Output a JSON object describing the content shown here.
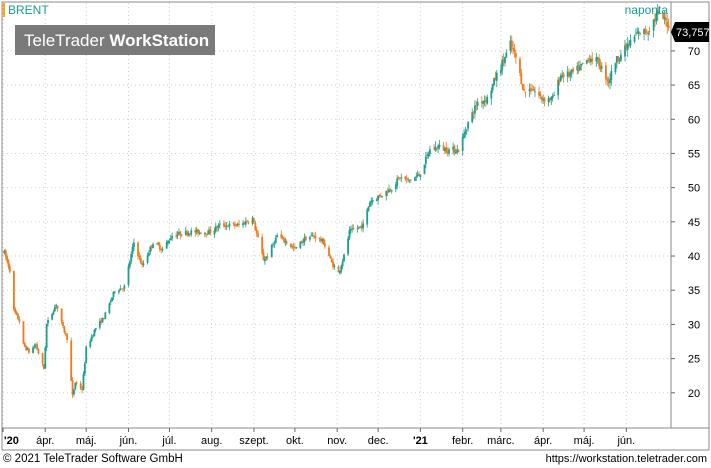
{
  "header": {
    "symbol": "BRENT",
    "interval": "naponta",
    "watermark_light": "TeleTrader",
    "watermark_bold": "WorkStation",
    "last_price": "73,757"
  },
  "footer": {
    "copyright": "© 2021 TeleTrader Software GmbH",
    "url": "https://workstation.teletrader.com"
  },
  "colors": {
    "up": "#1a9e8e",
    "down": "#f07a1a",
    "accent": "#f5a623",
    "symbol_text": "#1a9e8e",
    "grid": "#cfcfcf",
    "price_badge_bg": "#000000",
    "watermark_bg": "#7a7a7a"
  },
  "chart_data": {
    "type": "candlestick",
    "ylim": [
      15,
      77
    ],
    "yticks": [
      20,
      25,
      30,
      35,
      40,
      45,
      50,
      55,
      60,
      65,
      70
    ],
    "ytick_labels": [
      "20",
      "25",
      "30",
      "35",
      "40",
      "45",
      "50",
      "55",
      "60",
      "65",
      "70"
    ],
    "xlim": [
      "2020-03-01",
      "2021-07-03"
    ],
    "xticks": [
      {
        "date": "2020-03-01",
        "label": "'20"
      },
      {
        "date": "2020-04-01",
        "label": "ápr."
      },
      {
        "date": "2020-05-01",
        "label": "máj."
      },
      {
        "date": "2020-06-01",
        "label": "jún."
      },
      {
        "date": "2020-07-01",
        "label": "júl."
      },
      {
        "date": "2020-08-01",
        "label": "aug."
      },
      {
        "date": "2020-09-01",
        "label": "szept."
      },
      {
        "date": "2020-10-01",
        "label": "okt."
      },
      {
        "date": "2020-11-01",
        "label": "nov."
      },
      {
        "date": "2020-12-01",
        "label": "dec."
      },
      {
        "date": "2021-01-01",
        "label": "'21"
      },
      {
        "date": "2021-02-01",
        "label": "febr."
      },
      {
        "date": "2021-03-01",
        "label": "márc."
      },
      {
        "date": "2021-04-01",
        "label": "ápr."
      },
      {
        "date": "2021-05-01",
        "label": "máj."
      },
      {
        "date": "2021-06-01",
        "label": "jún."
      }
    ],
    "close_path": [
      [
        "2020-03-02",
        40.5
      ],
      [
        "2020-03-06",
        38.0
      ],
      [
        "2020-03-09",
        32.0
      ],
      [
        "2020-03-13",
        30.5
      ],
      [
        "2020-03-16",
        27.0
      ],
      [
        "2020-03-20",
        26.0
      ],
      [
        "2020-03-25",
        27.0
      ],
      [
        "2020-03-31",
        23.5
      ],
      [
        "2020-04-02",
        30.0
      ],
      [
        "2020-04-09",
        33.0
      ],
      [
        "2020-04-14",
        29.5
      ],
      [
        "2020-04-17",
        28.0
      ],
      [
        "2020-04-21",
        19.5
      ],
      [
        "2020-04-23",
        21.5
      ],
      [
        "2020-04-28",
        20.5
      ],
      [
        "2020-05-01",
        26.5
      ],
      [
        "2020-05-08",
        29.5
      ],
      [
        "2020-05-14",
        31.0
      ],
      [
        "2020-05-22",
        35.0
      ],
      [
        "2020-05-29",
        35.5
      ],
      [
        "2020-06-05",
        42.0
      ],
      [
        "2020-06-11",
        38.5
      ],
      [
        "2020-06-19",
        42.0
      ],
      [
        "2020-06-26",
        41.0
      ],
      [
        "2020-07-03",
        43.0
      ],
      [
        "2020-07-15",
        43.5
      ],
      [
        "2020-07-31",
        43.5
      ],
      [
        "2020-08-07",
        44.5
      ],
      [
        "2020-08-21",
        44.5
      ],
      [
        "2020-08-31",
        45.5
      ],
      [
        "2020-09-04",
        42.5
      ],
      [
        "2020-09-08",
        39.5
      ],
      [
        "2020-09-11",
        40.0
      ],
      [
        "2020-09-18",
        43.0
      ],
      [
        "2020-09-25",
        42.0
      ],
      [
        "2020-10-01",
        41.0
      ],
      [
        "2020-10-08",
        42.5
      ],
      [
        "2020-10-15",
        43.0
      ],
      [
        "2020-10-22",
        42.0
      ],
      [
        "2020-10-28",
        39.0
      ],
      [
        "2020-11-02",
        37.5
      ],
      [
        "2020-11-06",
        40.0
      ],
      [
        "2020-11-10",
        43.5
      ],
      [
        "2020-11-20",
        44.5
      ],
      [
        "2020-11-25",
        48.0
      ],
      [
        "2020-12-04",
        49.0
      ],
      [
        "2020-12-11",
        50.0
      ],
      [
        "2020-12-17",
        51.5
      ],
      [
        "2020-12-23",
        51.0
      ],
      [
        "2020-12-31",
        51.8
      ],
      [
        "2021-01-08",
        55.5
      ],
      [
        "2021-01-14",
        56.0
      ],
      [
        "2021-01-21",
        55.5
      ],
      [
        "2021-01-29",
        55.5
      ],
      [
        "2021-02-05",
        59.5
      ],
      [
        "2021-02-12",
        62.5
      ],
      [
        "2021-02-19",
        63.0
      ],
      [
        "2021-02-25",
        66.0
      ],
      [
        "2021-03-05",
        69.5
      ],
      [
        "2021-03-08",
        71.0
      ],
      [
        "2021-03-12",
        69.0
      ],
      [
        "2021-03-18",
        64.0
      ],
      [
        "2021-03-24",
        64.5
      ],
      [
        "2021-03-31",
        63.0
      ],
      [
        "2021-04-08",
        63.0
      ],
      [
        "2021-04-14",
        66.5
      ],
      [
        "2021-04-20",
        66.5
      ],
      [
        "2021-04-28",
        67.5
      ],
      [
        "2021-05-05",
        69.0
      ],
      [
        "2021-05-11",
        68.5
      ],
      [
        "2021-05-19",
        65.5
      ],
      [
        "2021-05-24",
        68.5
      ],
      [
        "2021-06-01",
        70.5
      ],
      [
        "2021-06-09",
        72.5
      ],
      [
        "2021-06-17",
        73.0
      ],
      [
        "2021-06-24",
        75.5
      ],
      [
        "2021-06-29",
        74.5
      ],
      [
        "2021-07-02",
        73.76
      ]
    ],
    "grid": true
  }
}
